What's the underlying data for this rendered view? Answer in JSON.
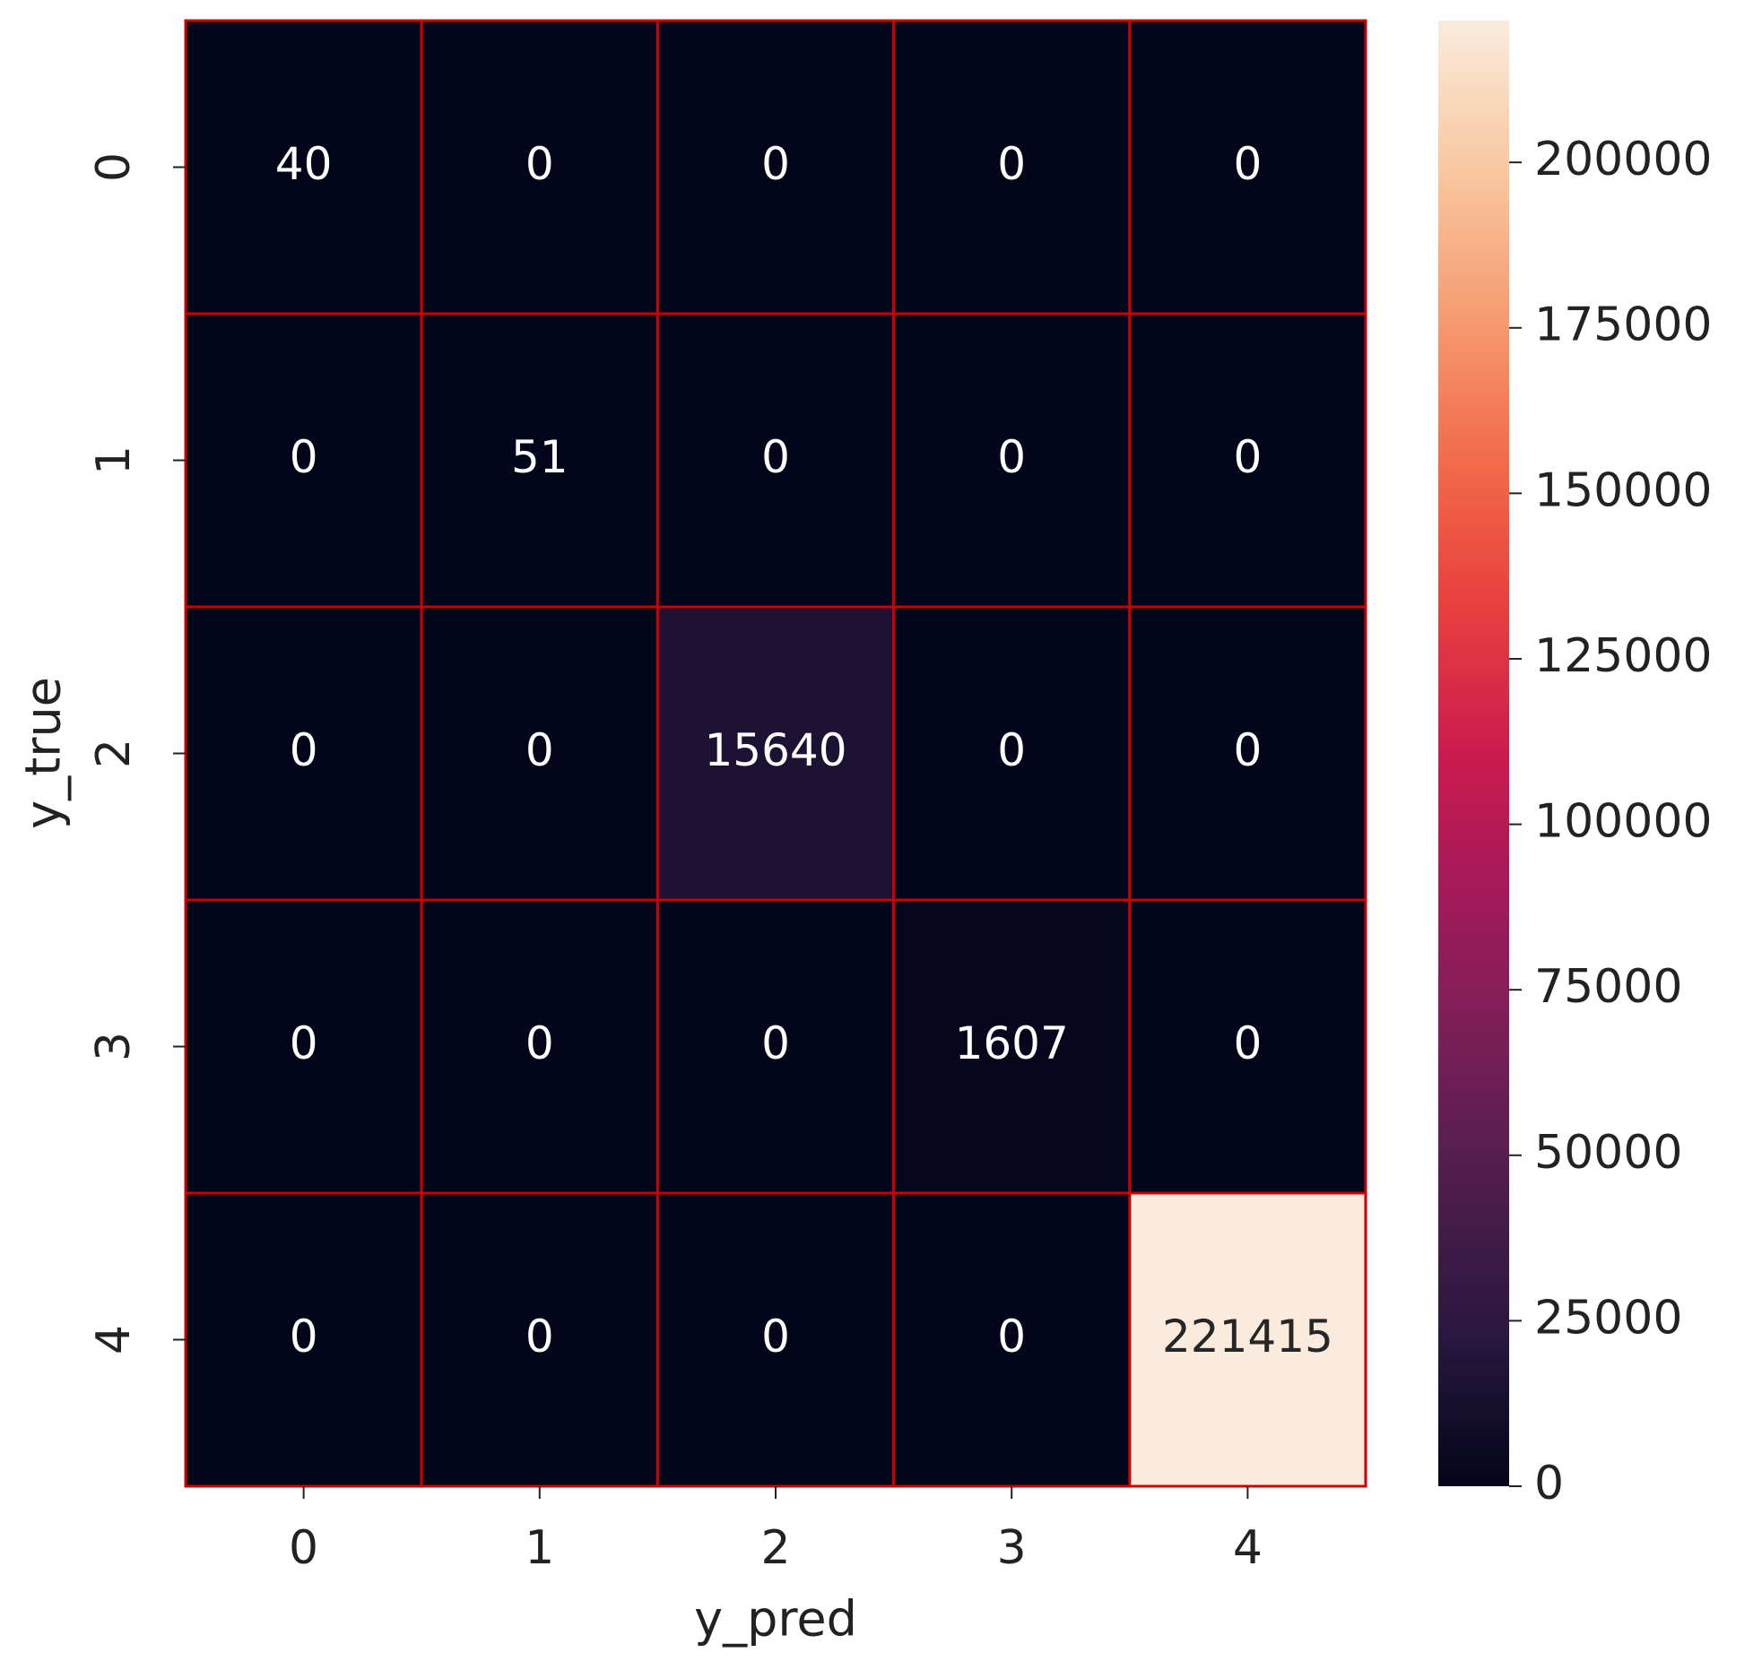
{
  "chart_data": {
    "type": "heatmap",
    "x_label": "y_pred",
    "y_label": "y_true",
    "x_categories": [
      "0",
      "1",
      "2",
      "3",
      "4"
    ],
    "y_categories": [
      "0",
      "1",
      "2",
      "3",
      "4"
    ],
    "z": [
      [
        40,
        0,
        0,
        0,
        0
      ],
      [
        0,
        51,
        0,
        0,
        0
      ],
      [
        0,
        0,
        15640,
        0,
        0
      ],
      [
        0,
        0,
        0,
        1607,
        0
      ],
      [
        0,
        0,
        0,
        0,
        221415
      ]
    ],
    "colormap": "rocket",
    "cell_border_color": "#cc0000",
    "colorbar": {
      "ylim": [
        0,
        221415
      ],
      "yticks": [
        0,
        25000,
        50000,
        75000,
        100000,
        125000,
        150000,
        175000,
        200000
      ]
    }
  }
}
